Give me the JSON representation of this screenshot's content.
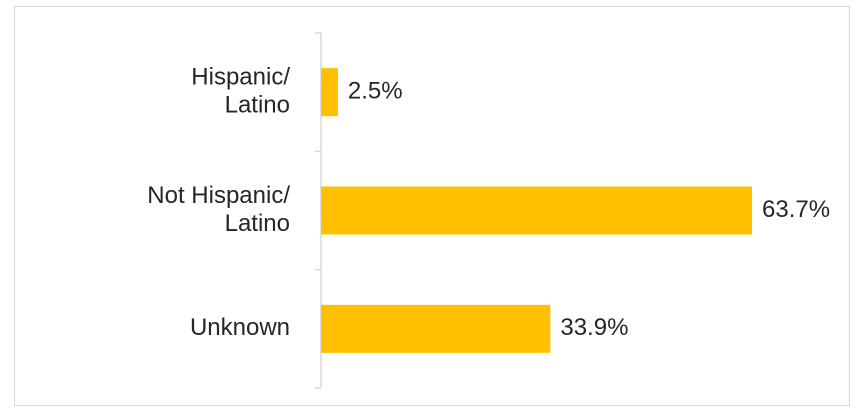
{
  "chart_data": {
    "type": "bar",
    "orientation": "horizontal",
    "categories": [
      [
        "Hispanic/",
        "Latino"
      ],
      [
        "Not Hispanic/",
        "Latino"
      ],
      [
        "Unknown"
      ]
    ],
    "values": [
      2.5,
      63.7,
      33.9
    ],
    "value_labels": [
      "2.5%",
      "63.7%",
      "33.9%"
    ],
    "unit": "%",
    "xlim": [
      0,
      63.7
    ],
    "grid": false,
    "legend": "none",
    "bar_color": "#FFC000",
    "axis_color": "#D9D9D9",
    "text_color": "#262626"
  }
}
